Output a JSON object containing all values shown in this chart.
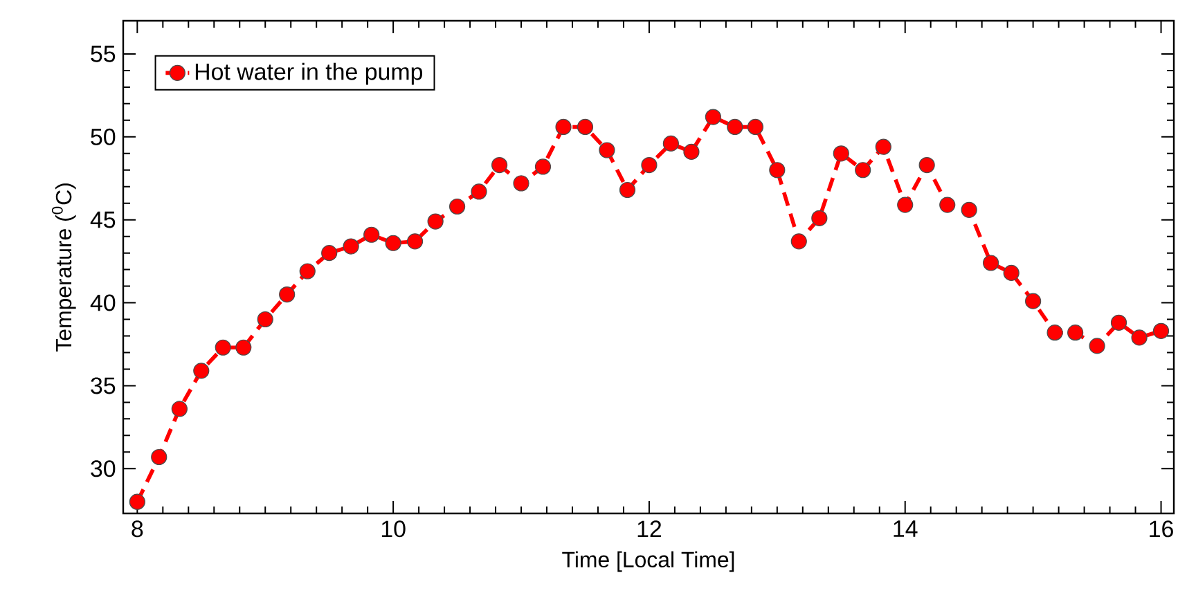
{
  "chart_data": {
    "type": "line",
    "xlabel": "Time [Local Time]",
    "ylabel": "Temperature ($^{0}$C)",
    "xlim": [
      7.89,
      16.1
    ],
    "ylim": [
      27.3,
      57
    ],
    "xticks": [
      8,
      10,
      12,
      14,
      16
    ],
    "yticks": [
      30,
      35,
      40,
      45,
      50,
      55
    ],
    "legend": "top left",
    "marker": "circle",
    "line_style": "dashed",
    "series": [
      {
        "name": "Hot water in the pump",
        "color": "#ff0000",
        "x": [
          8.0,
          8.17,
          8.33,
          8.5,
          8.67,
          8.83,
          9.0,
          9.17,
          9.33,
          9.5,
          9.67,
          9.83,
          10.0,
          10.17,
          10.33,
          10.5,
          10.67,
          10.83,
          11.0,
          11.17,
          11.33,
          11.5,
          11.67,
          11.83,
          12.0,
          12.17,
          12.33,
          12.5,
          12.67,
          12.83,
          13.0,
          13.17,
          13.33,
          13.5,
          13.67,
          13.83,
          14.0,
          14.17,
          14.33,
          14.5,
          14.67,
          14.83,
          15.0,
          15.17,
          15.33,
          15.5,
          15.67,
          15.83,
          16.0
        ],
        "values": [
          28.0,
          30.7,
          33.6,
          35.9,
          37.3,
          37.3,
          39.0,
          40.5,
          41.9,
          43.0,
          43.4,
          44.1,
          43.6,
          43.7,
          44.9,
          45.8,
          46.7,
          48.3,
          47.2,
          48.2,
          50.6,
          50.6,
          49.2,
          46.8,
          48.3,
          49.6,
          49.1,
          51.2,
          50.6,
          50.6,
          48.0,
          43.7,
          45.1,
          49.0,
          48.0,
          49.4,
          45.9,
          48.3,
          45.9,
          45.6,
          42.4,
          41.8,
          40.1,
          38.2,
          38.2,
          37.4,
          38.8,
          37.9,
          38.3
        ]
      }
    ]
  }
}
